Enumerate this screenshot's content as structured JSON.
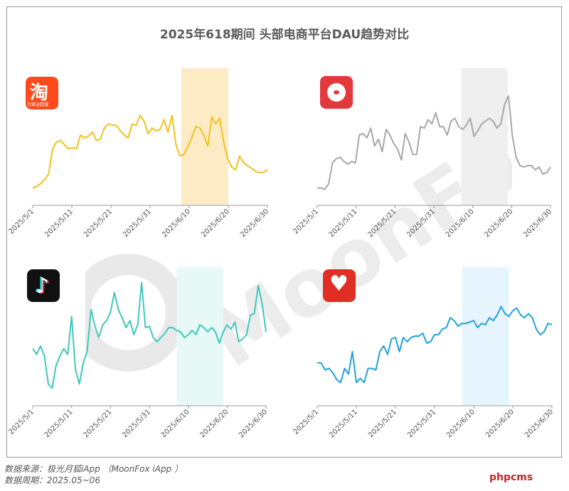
{
  "title": "2025年618期间 头部电商平台DAU趋势对比",
  "source_lines": [
    "数据来源：极光月狐iApp （MoonFox iApp ）",
    "数据周期：2025.05~06"
  ],
  "watermark_text": "MoonFox",
  "site_brand": "phpcms",
  "x_tick_labels": [
    "2025/5/1",
    "2025/5/11",
    "2025/5/21",
    "2025/5/31",
    "2025/6/10",
    "2025/6/20",
    "2025/6/30"
  ],
  "icons": [
    {
      "name": "taobao-icon",
      "label": "淘",
      "tagline": "为爱运超值",
      "color": "#ff4a1c"
    },
    {
      "name": "jd-icon",
      "label": "",
      "color": "#e4393c"
    },
    {
      "name": "douyin-icon",
      "label": "",
      "color": "#111111"
    },
    {
      "name": "pinduoduo-icon",
      "label": "",
      "color": "#e02e24"
    }
  ],
  "chart_data": [
    {
      "type": "line",
      "title": "",
      "axis": "2025/5/1 - 2025/6/30",
      "color": "#f2c21b",
      "highlight_color": "#fcebc4",
      "highlight": [
        "2025/6/8",
        "2025/6/20"
      ],
      "ylim": [
        0,
        100
      ],
      "values": [
        12,
        13,
        15,
        18,
        22,
        40,
        45,
        46,
        43,
        40,
        41,
        40,
        50,
        48,
        49,
        52,
        46,
        47,
        55,
        58,
        57,
        57,
        53,
        50,
        48,
        58,
        57,
        64,
        60,
        51,
        55,
        53,
        54,
        61,
        52,
        64,
        43,
        35,
        36,
        42,
        48,
        56,
        55,
        50,
        42,
        63,
        58,
        62,
        45,
        33,
        27,
        25,
        35,
        30,
        28,
        26,
        24,
        23,
        23,
        25
      ]
    },
    {
      "type": "line",
      "title": "",
      "axis": "2025/5/1 - 2025/6/30",
      "color": "#a7a7a7",
      "highlight_color": "#efefef",
      "highlight": [
        "2025/6/7",
        "2025/6/19"
      ],
      "ylim": [
        0,
        100
      ],
      "values": [
        12,
        12,
        11,
        15,
        30,
        33,
        34,
        31,
        29,
        31,
        30,
        50,
        51,
        48,
        55,
        42,
        47,
        38,
        54,
        50,
        44,
        40,
        32,
        51,
        45,
        36,
        36,
        56,
        55,
        61,
        58,
        66,
        56,
        56,
        50,
        60,
        62,
        56,
        54,
        57,
        62,
        49,
        53,
        58,
        60,
        62,
        60,
        55,
        58,
        72,
        78,
        50,
        34,
        28,
        27,
        28,
        28,
        25,
        27,
        22,
        23,
        27
      ]
    },
    {
      "type": "line",
      "title": "",
      "axis": "2025/5/1 - 2025/6/30",
      "color": "#3ec9bb",
      "highlight_color": "#e6f9f7",
      "highlight": [
        "2025/6/7",
        "2025/6/19"
      ],
      "ylim": [
        0,
        100
      ],
      "values": [
        40,
        36,
        42,
        35,
        15,
        12,
        28,
        35,
        40,
        36,
        63,
        25,
        15,
        30,
        38,
        68,
        56,
        48,
        57,
        60,
        66,
        80,
        68,
        62,
        55,
        60,
        50,
        57,
        87,
        55,
        56,
        48,
        45,
        48,
        51,
        55,
        55,
        53,
        52,
        48,
        50,
        53,
        50,
        57,
        55,
        52,
        55,
        52,
        44,
        52,
        57,
        54,
        59,
        45,
        47,
        50,
        64,
        65,
        85,
        72,
        52
      ]
    },
    {
      "type": "line",
      "title": "",
      "axis": "2025/5/1 - 2025/6/30",
      "color": "#21a1e0",
      "highlight_color": "#e5f4fd",
      "highlight": [
        "2025/6/7",
        "2025/6/19"
      ],
      "ylim": [
        0,
        100
      ],
      "values": [
        30,
        30,
        25,
        26,
        23,
        18,
        16,
        26,
        22,
        38,
        16,
        19,
        16,
        26,
        26,
        25,
        38,
        42,
        36,
        47,
        48,
        38,
        48,
        45,
        48,
        49,
        49,
        51,
        44,
        45,
        50,
        50,
        54,
        55,
        62,
        60,
        56,
        58,
        58,
        59,
        60,
        55,
        58,
        57,
        62,
        60,
        64,
        70,
        65,
        63,
        67,
        69,
        64,
        62,
        65,
        62,
        54,
        50,
        52,
        58,
        57
      ]
    }
  ]
}
